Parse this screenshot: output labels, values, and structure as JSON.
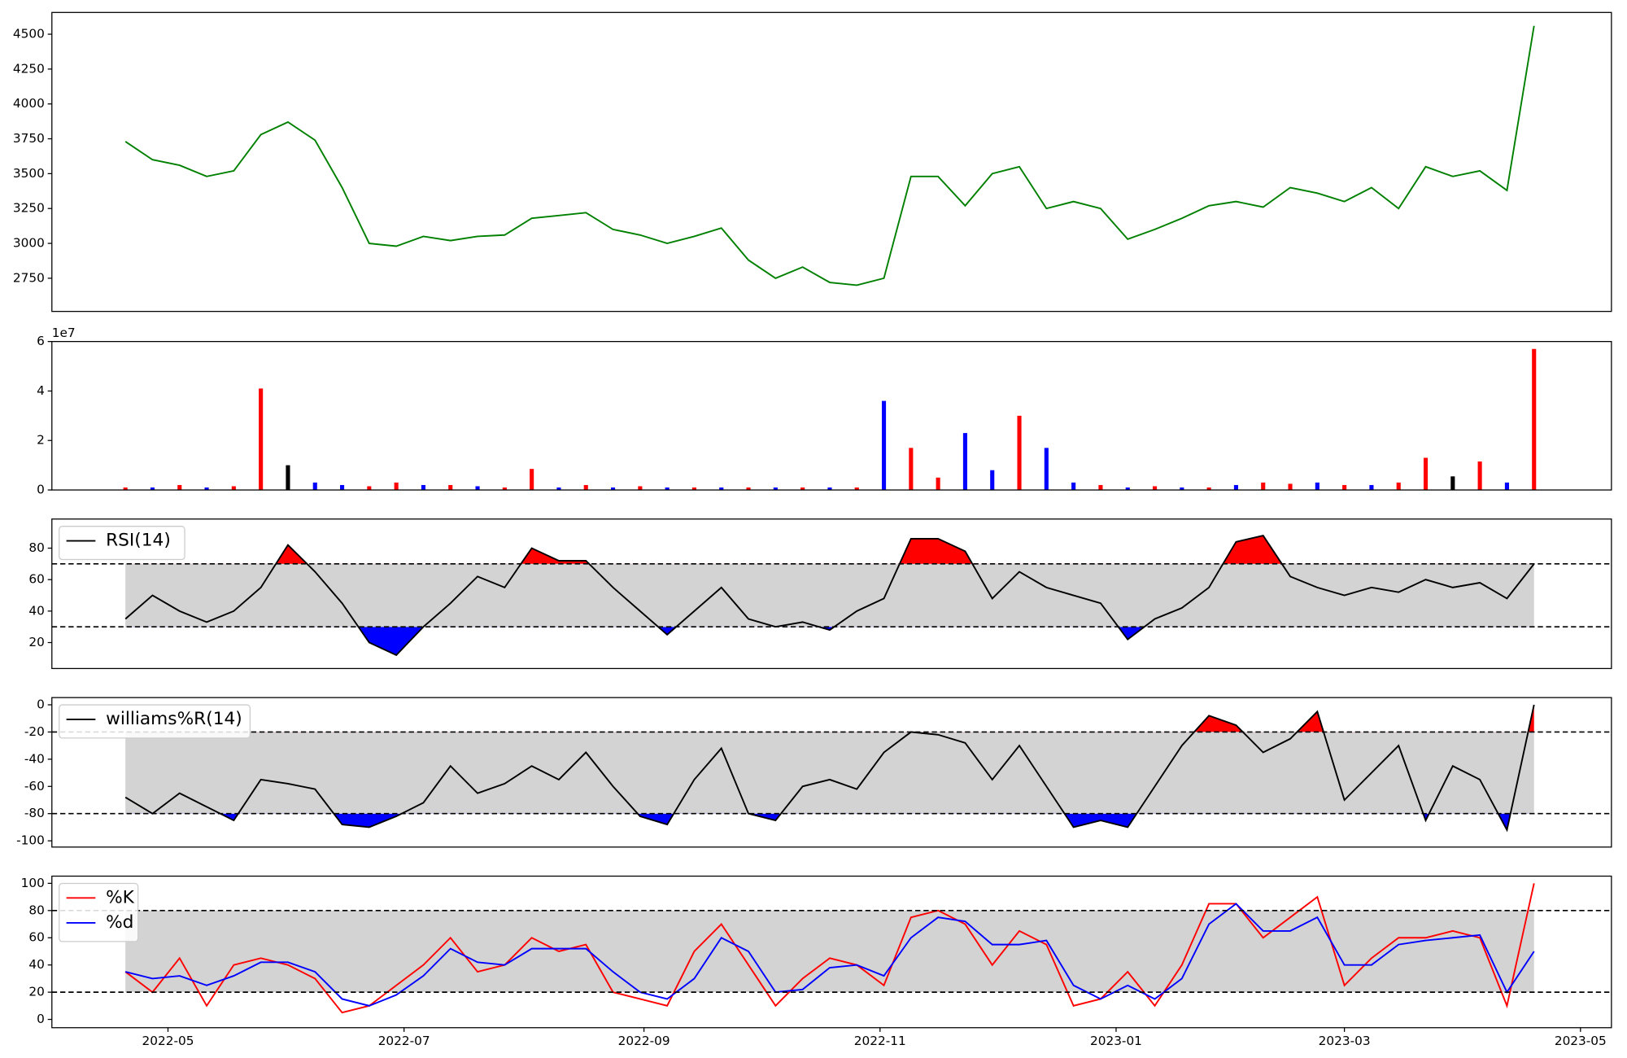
{
  "chart_data": [
    {
      "type": "line",
      "ylim": [
        2512,
        4656
      ],
      "yticks": [
        2750,
        3000,
        3250,
        3500,
        3750,
        4000,
        4250,
        4500
      ],
      "series": [
        {
          "color": "green",
          "values": [
            3730,
            3600,
            3560,
            3480,
            3520,
            3780,
            3870,
            3740,
            3400,
            3000,
            2980,
            3050,
            3020,
            3050,
            3060,
            3180,
            3200,
            3220,
            3100,
            3060,
            3000,
            3050,
            3110,
            2880,
            2750,
            2830,
            2720,
            2700,
            2750,
            3480,
            3480,
            3270,
            3500,
            3550,
            3250,
            3300,
            3250,
            3030,
            3100,
            3180,
            3270,
            3300,
            3260,
            3400,
            3360,
            3300,
            3400,
            3250,
            3550,
            3480,
            3520,
            3380,
            4560
          ]
        }
      ]
    },
    {
      "type": "bar",
      "offset_text": "1e7",
      "ylim": [
        0,
        6
      ],
      "yticks": [
        0,
        2,
        4,
        6
      ],
      "values": [
        0.1,
        0.1,
        0.2,
        0.1,
        0.15,
        4.1,
        1.0,
        0.3,
        0.2,
        0.15,
        0.3,
        0.2,
        0.2,
        0.15,
        0.1,
        0.85,
        0.1,
        0.2,
        0.1,
        0.15,
        0.1,
        0.1,
        0.1,
        0.1,
        0.1,
        0.1,
        0.1,
        0.1,
        3.6,
        1.7,
        0.5,
        2.3,
        0.8,
        3.0,
        1.7,
        0.3,
        0.2,
        0.1,
        0.15,
        0.1,
        0.1,
        0.2,
        0.3,
        0.25,
        0.3,
        0.2,
        0.2,
        0.3,
        1.3,
        0.55,
        1.15,
        0.3,
        5.7
      ],
      "colors": [
        "red",
        "blue",
        "red",
        "blue",
        "red",
        "red",
        "black",
        "blue",
        "blue",
        "red",
        "red",
        "blue",
        "red",
        "blue",
        "red",
        "red",
        "blue",
        "red",
        "blue",
        "red",
        "blue",
        "red",
        "blue",
        "red",
        "blue",
        "red",
        "blue",
        "red",
        "blue",
        "red",
        "red",
        "blue",
        "blue",
        "red",
        "blue",
        "blue",
        "red",
        "blue",
        "red",
        "blue",
        "red",
        "blue",
        "red",
        "red",
        "blue",
        "red",
        "blue",
        "red",
        "red",
        "black",
        "red",
        "blue",
        "red"
      ]
    },
    {
      "type": "line",
      "ylim": [
        3.5,
        98.5
      ],
      "yticks": [
        20,
        40,
        60,
        80
      ],
      "hlines": [
        30,
        70
      ],
      "band_color": "lightgray",
      "fill_colors": [
        "red",
        "blue"
      ],
      "legend": "upper left",
      "series": [
        {
          "name": "RSI(14)",
          "color": "black",
          "fill": true,
          "values": [
            35,
            50,
            40,
            33,
            40,
            55,
            82,
            65,
            45,
            20,
            12,
            30,
            45,
            62,
            55,
            80,
            72,
            72,
            55,
            40,
            25,
            40,
            55,
            35,
            30,
            33,
            28,
            40,
            48,
            86,
            86,
            78,
            48,
            65,
            55,
            50,
            45,
            22,
            35,
            42,
            55,
            84,
            88,
            62,
            55,
            50,
            55,
            52,
            60,
            55,
            58,
            48,
            70
          ]
        }
      ]
    },
    {
      "type": "line",
      "ylim": [
        -104.6,
        5.3
      ],
      "yticks": [
        -100,
        -80,
        -60,
        -40,
        -20,
        0
      ],
      "hlines": [
        -80,
        -20
      ],
      "band_color": "lightgray",
      "fill_colors": [
        "red",
        "blue"
      ],
      "legend": "upper left",
      "series": [
        {
          "name": "williams%R(14)",
          "color": "black",
          "fill": true,
          "values": [
            -68,
            -80,
            -65,
            -75,
            -85,
            -55,
            -58,
            -62,
            -88,
            -90,
            -82,
            -72,
            -45,
            -65,
            -58,
            -45,
            -55,
            -35,
            -60,
            -82,
            -88,
            -55,
            -32,
            -80,
            -85,
            -60,
            -55,
            -62,
            -35,
            -20,
            -22,
            -28,
            -55,
            -30,
            -60,
            -90,
            -85,
            -90,
            -60,
            -30,
            -8,
            -15,
            -35,
            -25,
            -5,
            -70,
            -50,
            -30,
            -85,
            -45,
            -55,
            -92,
            0
          ]
        }
      ]
    },
    {
      "type": "line",
      "ylim": [
        -6.1,
        105.3
      ],
      "yticks": [
        0,
        20,
        40,
        60,
        80,
        100
      ],
      "hlines": [
        20,
        80
      ],
      "band_color": "lightgray",
      "legend": "upper left",
      "xlim": [
        19083,
        19486
      ],
      "xticks": [
        {
          "value": 19113,
          "label": "2022-05"
        },
        {
          "value": 19174,
          "label": "2022-07"
        },
        {
          "value": 19236,
          "label": "2022-09"
        },
        {
          "value": 19297,
          "label": "2022-11"
        },
        {
          "value": 19358,
          "label": "2023-01"
        },
        {
          "value": 19417,
          "label": "2023-03"
        },
        {
          "value": 19478,
          "label": "2023-05"
        }
      ],
      "x": [
        19102,
        19109,
        19116,
        19123,
        19130,
        19137,
        19144,
        19151,
        19158,
        19165,
        19172,
        19179,
        19186,
        19193,
        19200,
        19207,
        19214,
        19221,
        19228,
        19235,
        19242,
        19249,
        19256,
        19263,
        19270,
        19277,
        19284,
        19291,
        19298,
        19305,
        19312,
        19319,
        19326,
        19333,
        19340,
        19347,
        19354,
        19361,
        19368,
        19375,
        19382,
        19389,
        19396,
        19403,
        19410,
        19417,
        19424,
        19431,
        19438,
        19445,
        19452,
        19459,
        19466
      ],
      "series": [
        {
          "name": "%K",
          "color": "red",
          "values": [
            35,
            20,
            45,
            10,
            40,
            45,
            40,
            30,
            5,
            10,
            25,
            40,
            60,
            35,
            40,
            60,
            50,
            55,
            20,
            15,
            10,
            50,
            70,
            40,
            10,
            30,
            45,
            40,
            25,
            75,
            80,
            70,
            40,
            65,
            55,
            10,
            15,
            35,
            10,
            40,
            85,
            85,
            60,
            75,
            90,
            25,
            45,
            60,
            60,
            65,
            60,
            10,
            100
          ]
        },
        {
          "name": "%d",
          "color": "blue",
          "values": [
            35,
            30,
            32,
            25,
            32,
            42,
            42,
            35,
            15,
            10,
            18,
            32,
            52,
            42,
            40,
            52,
            52,
            52,
            35,
            20,
            15,
            30,
            60,
            50,
            20,
            22,
            38,
            40,
            32,
            60,
            75,
            72,
            55,
            55,
            58,
            25,
            15,
            25,
            15,
            30,
            70,
            85,
            65,
            65,
            75,
            40,
            40,
            55,
            58,
            60,
            62,
            20,
            50
          ]
        }
      ]
    }
  ]
}
